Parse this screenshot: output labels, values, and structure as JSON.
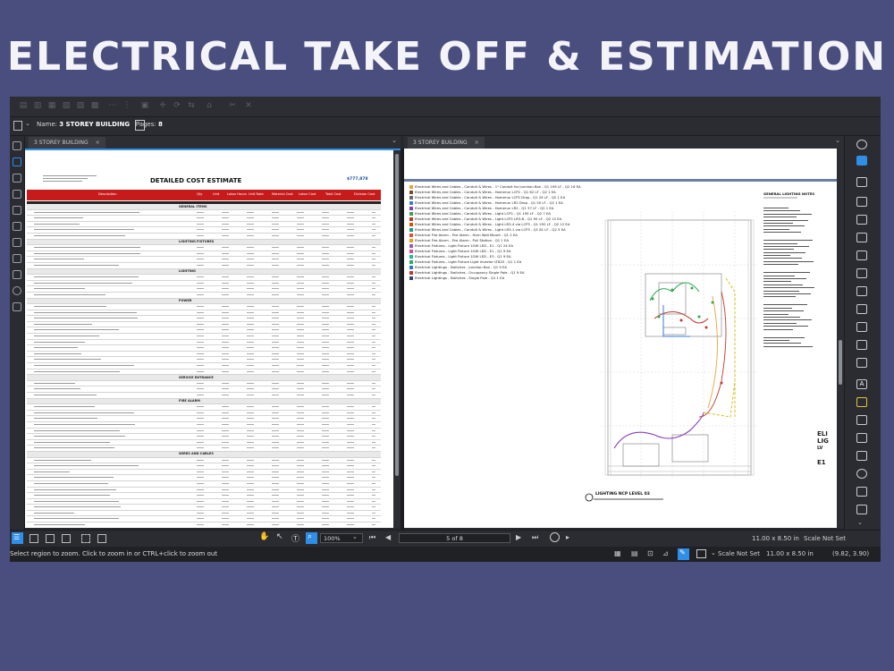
{
  "banner": {
    "title": "ELECTRICAL TAKE OFF & ESTIMATION"
  },
  "document": {
    "name_label": "Name:",
    "name_value": "3 STOREY BUILDING",
    "pages_label": "Pages:",
    "pages_value": "8"
  },
  "tabs": {
    "left": "3 STOREY BUILDING",
    "right": "3 STOREY BUILDING",
    "close": "×"
  },
  "sheet": {
    "title": "DETAILED COST ESTIMATE",
    "total": "$777,878",
    "columns": [
      "Description",
      "Qty",
      "Unit",
      "Labor Hours",
      "Unit Rate",
      "Material Cost",
      "Labor Cost",
      "Total Cost",
      "Division Cost"
    ],
    "sections": [
      "GENERAL ITEMS",
      "LIGHTING FIXTURES",
      "LIGHTING",
      "POWER",
      "SERVICE ENTRANCE",
      "FIRE ALARM",
      "WIRES AND CABLES"
    ]
  },
  "legend": [
    {
      "label": "Electrical Wires and Cables - Conduit & Wires - 1\" Conduit for Junction Box - Q1 199 LF - Q2 16 EA",
      "color": "#e8a33b"
    },
    {
      "label": "Electrical Wires and Cables - Conduit & Wires - Homerun LCP2 - Q1 62 LF - Q2 1 EA",
      "color": "#7a4a2b"
    },
    {
      "label": "Electrical Wires and Cables - Conduit & Wires - Homerun LCP2 Drop - Q1 29 LF - Q2 1 EA",
      "color": "#6b6b6b"
    },
    {
      "label": "Electrical Wires and Cables - Conduit & Wires - Homerun LR2 Drop - Q1 50 LF - Q2 1 EA",
      "color": "#3a7bd5"
    },
    {
      "label": "Electrical Wires and Cables - Conduit & Wires - Homerun LR2 - Q1 37 LF - Q2 1 EA",
      "color": "#8a3fb8"
    },
    {
      "label": "Electrical Wires and Cables - Conduit & Wires - Light LCP2 - Q1 195 LF - Q2 7 EA",
      "color": "#2fa84f"
    },
    {
      "label": "Electrical Wires and Cables - Conduit & Wires - Light LCP2 LR3-B - Q1 95 LF - Q2 12 EA",
      "color": "#c0392b"
    },
    {
      "label": "Electrical Wires and Cables - Conduit & Wires - Light LR3-4 via LCP3 - Q1 292 LF - Q2 12 EA",
      "color": "#d35400"
    },
    {
      "label": "Electrical Wires and Cables - Conduit & Wires - Light LR3-1 via LCP3 - Q1 81 LF - Q2 5 EA",
      "color": "#16a085"
    },
    {
      "label": "Electrical Fire Alarm - Fire Alarm - Horn Wall Mount - Q1 2 EA",
      "color": "#e74c3c"
    },
    {
      "label": "Electrical Fire Alarm - Fire Alarm - Pull Station - Q1 1 EA",
      "color": "#f39c12"
    },
    {
      "label": "Electrical Fixtures - Light Fixture 1GW LED - E1 - Q1 24 EA",
      "color": "#9b59b6"
    },
    {
      "label": "Electrical Fixtures - Light Fixture 1GW LED - E1 - Q1 9 EA",
      "color": "#e84393"
    },
    {
      "label": "Electrical Fixtures - Light Fixture 1GW LED - E3 - Q1 9 EA",
      "color": "#1abc9c"
    },
    {
      "label": "Electrical Fixtures - Light Fixture Light Inverter LT825 - Q1 1 EA",
      "color": "#27ae60"
    },
    {
      "label": "Electrical Lightings - Switches - Junction Box - Q1 9 EA",
      "color": "#2980b9"
    },
    {
      "label": "Electrical Lightings - Switches - Occupancy Single Pole - Q1 9 EA",
      "color": "#c0392b"
    },
    {
      "label": "Electrical Lightings - Switches - Single Pole - Q1 1 EA",
      "color": "#34495e"
    }
  ],
  "drawing": {
    "level_title": "LIGHTING NCP LEVEL 03",
    "notes_title": "GENERAL LIGHTING NOTES",
    "side_text": [
      "ELI",
      "LIG",
      "LV",
      "E1"
    ]
  },
  "status": {
    "zoom": "100%",
    "page": "5 of 8",
    "page_size": "11.00 x 8.50 in",
    "scale": "Scale Not Set",
    "hint": "Select region to zoom. Click to zoom in or CTRL+click to zoom out",
    "scale_dropdown": "Scale Not Set",
    "page_size_2": "11.00 x 8.50 in",
    "coords": "(9.82, 3.90)"
  }
}
